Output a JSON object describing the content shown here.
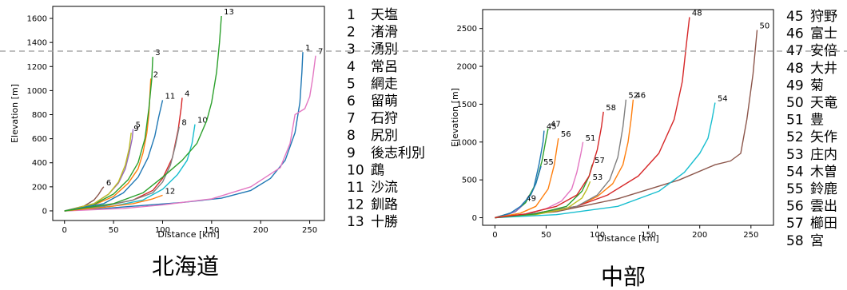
{
  "chart_data": [
    {
      "type": "line",
      "title": "北海道",
      "xlabel": "Distance [km]",
      "ylabel": "Elevation [m]",
      "xlim": [
        -12,
        265
      ],
      "ylim": [
        -80,
        1700
      ],
      "xticks": [
        0,
        50,
        100,
        150,
        200,
        250
      ],
      "yticks": [
        0,
        200,
        400,
        600,
        800,
        1000,
        1200,
        1400,
        1600
      ],
      "grid": false,
      "legend_position": "right",
      "series": [
        {
          "name": "1",
          "legend": "天塩",
          "color": "#1f77b4",
          "x": [
            0,
            40,
            80,
            120,
            160,
            190,
            210,
            225,
            235,
            240,
            242,
            243
          ],
          "y": [
            0,
            20,
            45,
            70,
            105,
            170,
            270,
            420,
            650,
            900,
            1150,
            1320
          ]
        },
        {
          "name": "2",
          "legend": "渚滑",
          "color": "#ff7f0e",
          "x": [
            0,
            30,
            50,
            65,
            75,
            80,
            84,
            86,
            87,
            88
          ],
          "y": [
            0,
            50,
            120,
            230,
            350,
            480,
            650,
            800,
            950,
            1100
          ]
        },
        {
          "name": "3",
          "legend": "湧別",
          "color": "#2ca02c",
          "x": [
            0,
            30,
            50,
            65,
            75,
            82,
            86,
            89,
            90
          ],
          "y": [
            0,
            55,
            140,
            260,
            400,
            600,
            850,
            1100,
            1280
          ]
        },
        {
          "name": "4",
          "legend": "常呂",
          "color": "#d62728",
          "x": [
            0,
            40,
            70,
            90,
            100,
            110,
            116,
            119,
            120
          ],
          "y": [
            0,
            40,
            90,
            170,
            270,
            440,
            680,
            860,
            940
          ]
        },
        {
          "name": "5",
          "legend": "網走",
          "color": "#9467bd",
          "x": [
            0,
            30,
            45,
            55,
            62,
            66,
            69,
            70
          ],
          "y": [
            0,
            60,
            140,
            230,
            350,
            480,
            600,
            680
          ]
        },
        {
          "name": "6",
          "legend": "留萌",
          "color": "#8c564b",
          "x": [
            0,
            20,
            30,
            35,
            38,
            40
          ],
          "y": [
            0,
            40,
            90,
            140,
            180,
            200
          ]
        },
        {
          "name": "7",
          "legend": "石狩",
          "color": "#e377c2",
          "x": [
            0,
            60,
            100,
            150,
            190,
            220,
            230,
            235,
            245,
            250,
            253,
            256
          ],
          "y": [
            0,
            20,
            50,
            100,
            200,
            360,
            560,
            800,
            850,
            950,
            1100,
            1290
          ]
        },
        {
          "name": "8",
          "legend": "尻別",
          "color": "#7f7f7f",
          "x": [
            0,
            40,
            70,
            90,
            100,
            108,
            113,
            117
          ],
          "y": [
            0,
            40,
            90,
            150,
            240,
            380,
            540,
            700
          ]
        },
        {
          "name": "9",
          "legend": "後志利別",
          "color": "#bcbd22",
          "x": [
            0,
            30,
            45,
            55,
            62,
            66,
            68
          ],
          "y": [
            0,
            60,
            140,
            240,
            380,
            520,
            650
          ]
        },
        {
          "name": "10",
          "legend": "鵡",
          "color": "#17becf",
          "x": [
            0,
            50,
            80,
            100,
            115,
            125,
            130,
            133
          ],
          "y": [
            0,
            40,
            90,
            180,
            300,
            420,
            560,
            720
          ]
        },
        {
          "name": "11",
          "legend": "沙流",
          "color": "#1f77b4",
          "x": [
            0,
            40,
            60,
            75,
            85,
            92,
            96,
            100
          ],
          "y": [
            0,
            60,
            150,
            280,
            440,
            620,
            780,
            920
          ]
        },
        {
          "name": "12",
          "legend": "釧路",
          "color": "#ff7f0e",
          "x": [
            0,
            40,
            70,
            90,
            100
          ],
          "y": [
            0,
            30,
            60,
            100,
            130
          ]
        },
        {
          "name": "13",
          "legend": "十勝",
          "color": "#2ca02c",
          "x": [
            0,
            50,
            80,
            100,
            120,
            135,
            145,
            150,
            155,
            158,
            160
          ],
          "y": [
            0,
            60,
            150,
            280,
            420,
            560,
            750,
            900,
            1150,
            1400,
            1620
          ]
        }
      ]
    },
    {
      "type": "line",
      "title": "中部",
      "xlabel": "Distance [km]",
      "ylabel": "Elevation [m]",
      "xlim": [
        -12,
        272
      ],
      "ylim": [
        -100,
        2750
      ],
      "xticks": [
        0,
        50,
        100,
        150,
        200,
        250
      ],
      "yticks": [
        0,
        500,
        1000,
        1500,
        2000,
        2500
      ],
      "grid": false,
      "legend_position": "right",
      "series": [
        {
          "name": "45",
          "legend": "狩野",
          "color": "#1f77b4",
          "x": [
            0,
            20,
            30,
            38,
            43,
            47,
            48
          ],
          "y": [
            0,
            80,
            200,
            400,
            700,
            1000,
            1150
          ]
        },
        {
          "name": "46",
          "legend": "富士",
          "color": "#ff7f0e",
          "x": [
            0,
            40,
            80,
            100,
            115,
            125,
            130,
            133,
            135
          ],
          "y": [
            0,
            60,
            150,
            280,
            450,
            700,
            1000,
            1300,
            1560
          ]
        },
        {
          "name": "47",
          "legend": "安倍",
          "color": "#2ca02c",
          "x": [
            0,
            20,
            30,
            40,
            46,
            50,
            52
          ],
          "y": [
            0,
            80,
            200,
            450,
            750,
            1050,
            1180
          ]
        },
        {
          "name": "48",
          "legend": "大井",
          "color": "#d62728",
          "x": [
            0,
            40,
            80,
            110,
            140,
            160,
            175,
            183,
            187,
            190
          ],
          "y": [
            0,
            60,
            150,
            300,
            550,
            850,
            1300,
            1800,
            2300,
            2650
          ]
        },
        {
          "name": "49",
          "legend": "菊",
          "color": "#9467bd",
          "x": [
            0,
            10,
            20,
            25,
            28
          ],
          "y": [
            0,
            30,
            80,
            140,
            200
          ]
        },
        {
          "name": "50",
          "legend": "天竜",
          "color": "#8c564b",
          "x": [
            0,
            60,
            120,
            180,
            215,
            230,
            240,
            246,
            252,
            256
          ],
          "y": [
            0,
            80,
            250,
            500,
            700,
            750,
            850,
            1300,
            1900,
            2480
          ]
        },
        {
          "name": "51",
          "legend": "豊",
          "color": "#e377c2",
          "x": [
            0,
            30,
            50,
            65,
            75,
            80,
            84,
            86
          ],
          "y": [
            0,
            50,
            120,
            220,
            380,
            600,
            850,
            1000
          ]
        },
        {
          "name": "52",
          "legend": "矢作",
          "color": "#7f7f7f",
          "x": [
            0,
            40,
            80,
            100,
            112,
            120,
            125,
            128
          ],
          "y": [
            0,
            60,
            150,
            300,
            500,
            800,
            1200,
            1560
          ]
        },
        {
          "name": "53",
          "legend": "庄内",
          "color": "#bcbd22",
          "x": [
            0,
            40,
            70,
            85,
            90,
            93
          ],
          "y": [
            0,
            40,
            120,
            260,
            380,
            480
          ]
        },
        {
          "name": "54",
          "legend": "木曽",
          "color": "#17becf",
          "x": [
            0,
            60,
            120,
            160,
            185,
            200,
            208,
            212,
            215
          ],
          "y": [
            0,
            40,
            150,
            350,
            600,
            850,
            1050,
            1300,
            1520
          ]
        },
        {
          "name": "55",
          "legend": "鈴鹿",
          "color": "#1f77b4",
          "x": [
            0,
            15,
            25,
            35,
            40,
            45
          ],
          "y": [
            0,
            60,
            150,
            300,
            450,
            680
          ]
        },
        {
          "name": "56",
          "legend": "雲出",
          "color": "#ff7f0e",
          "x": [
            0,
            25,
            40,
            52,
            58,
            62
          ],
          "y": [
            0,
            60,
            150,
            380,
            700,
            1050
          ]
        },
        {
          "name": "57",
          "legend": "櫛田",
          "color": "#2ca02c",
          "x": [
            0,
            40,
            70,
            85,
            92,
            95
          ],
          "y": [
            0,
            50,
            150,
            350,
            550,
            700
          ]
        },
        {
          "name": "58",
          "legend": "宮",
          "color": "#d62728",
          "x": [
            0,
            30,
            60,
            80,
            92,
            100,
            104,
            106
          ],
          "y": [
            0,
            50,
            150,
            300,
            550,
            900,
            1200,
            1400
          ]
        }
      ]
    }
  ],
  "reference_line": {
    "color": "#999999",
    "label": ""
  }
}
